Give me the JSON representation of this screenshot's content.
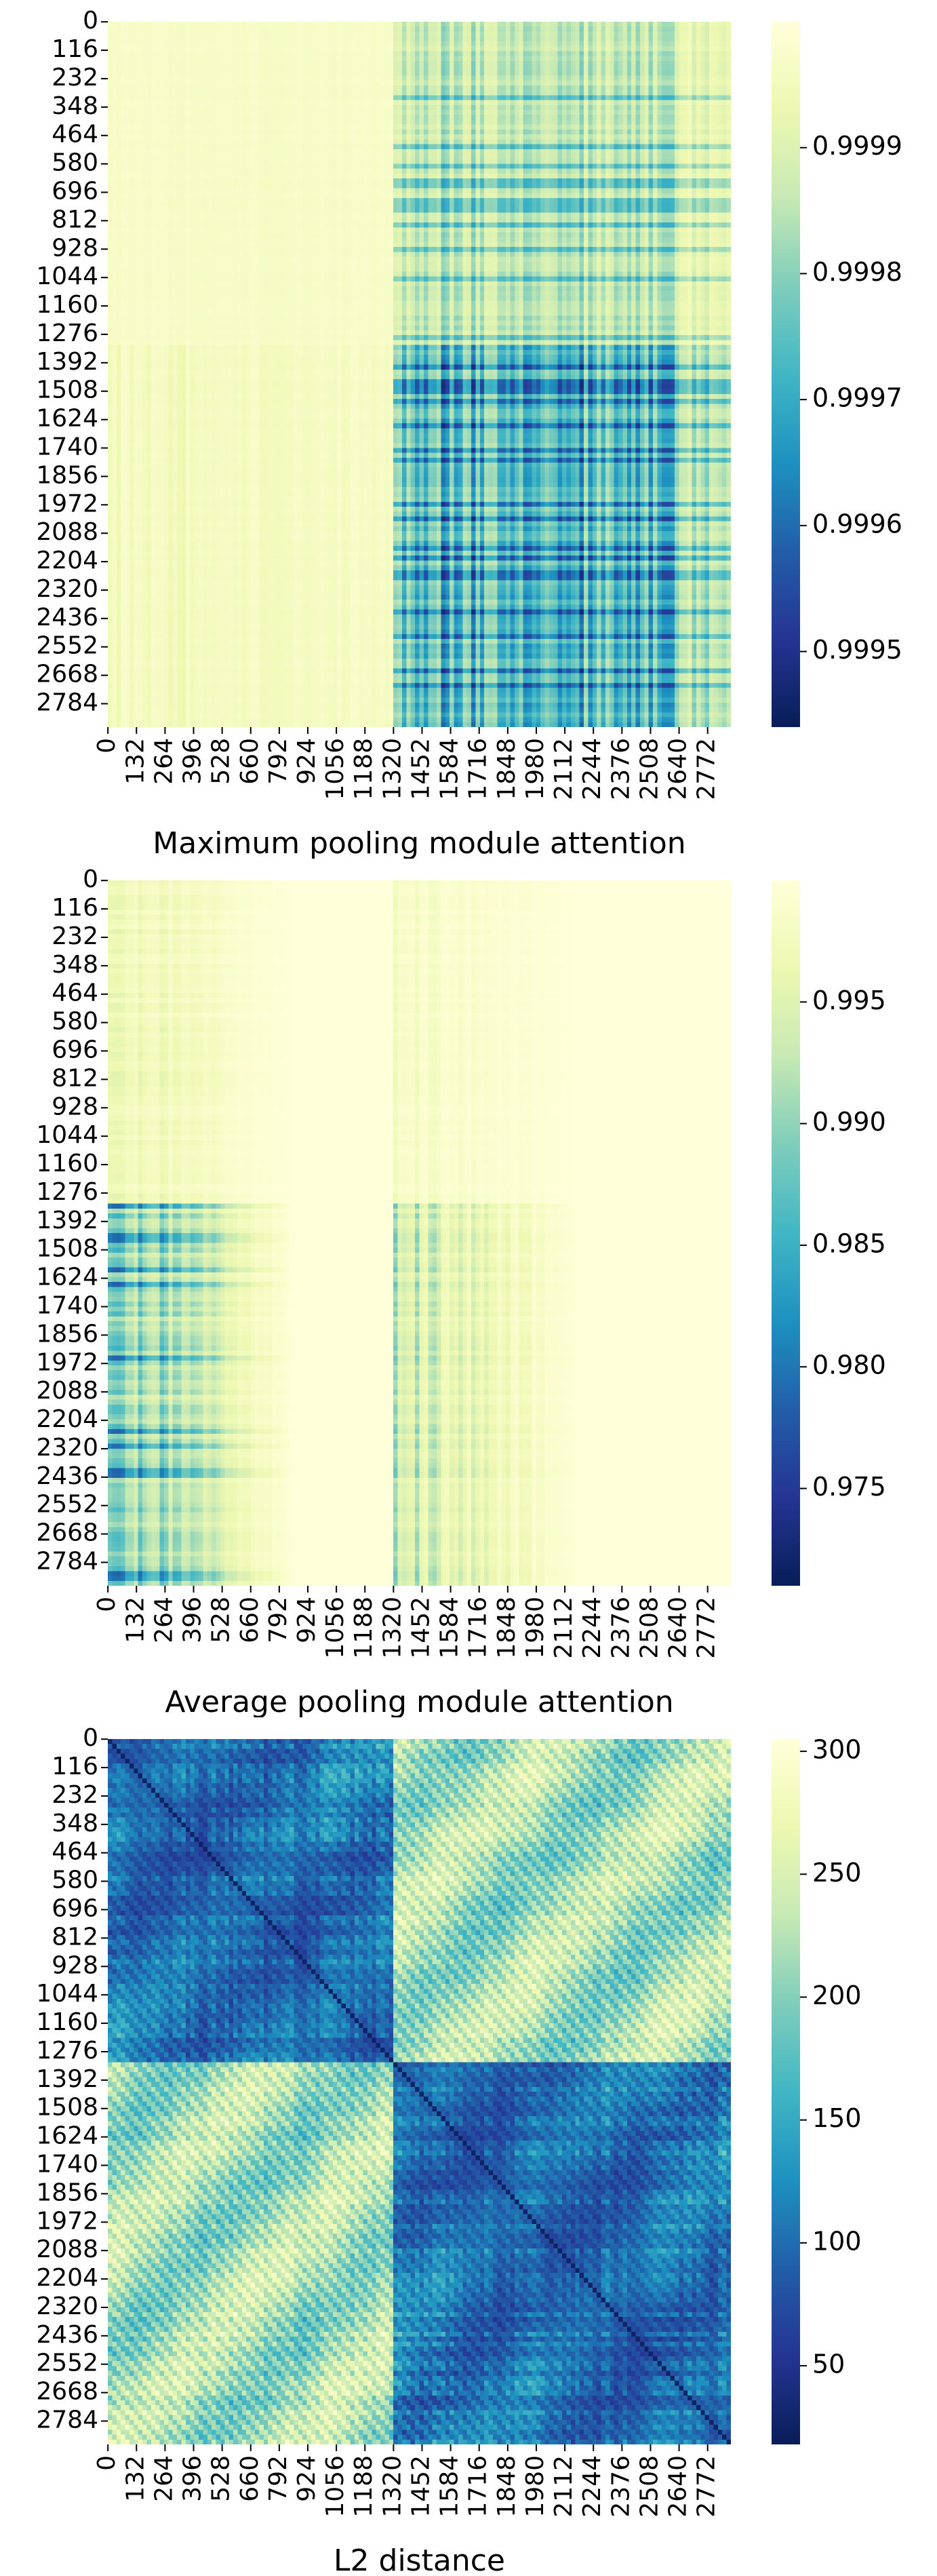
{
  "chart_data": [
    {
      "type": "heatmap",
      "title": "",
      "xlabel": "Maximum pooling module attention",
      "ylabel": "",
      "row_ticks": [
        "0",
        "116",
        "232",
        "348",
        "464",
        "580",
        "696",
        "812",
        "928",
        "1044",
        "1160",
        "1276",
        "1392",
        "1508",
        "1624",
        "1740",
        "1856",
        "1972",
        "2088",
        "2204",
        "2320",
        "2436",
        "2552",
        "2668",
        "2784"
      ],
      "col_ticks": [
        "0",
        "132",
        "264",
        "396",
        "528",
        "660",
        "792",
        "924",
        "1056",
        "1188",
        "1320",
        "1452",
        "1584",
        "1716",
        "1848",
        "1980",
        "2112",
        "2244",
        "2376",
        "2508",
        "2640",
        "2772"
      ],
      "matrix_size": 2880,
      "block_boundary": 1320,
      "colorbar": {
        "cmap": "YlGnBu",
        "reversed_note": "dark = low, light = high",
        "vmin": 0.99944,
        "vmax": 1.0,
        "ticks": [
          0.9995,
          0.9996,
          0.9997,
          0.9998,
          0.9999
        ],
        "tick_labels": [
          "0.9995",
          "0.9996",
          "0.9997",
          "0.9998",
          "0.9999"
        ]
      }
    },
    {
      "type": "heatmap",
      "title": "",
      "xlabel": "Average pooling module attention",
      "ylabel": "",
      "row_ticks": [
        "0",
        "116",
        "232",
        "348",
        "464",
        "580",
        "696",
        "812",
        "928",
        "1044",
        "1160",
        "1276",
        "1392",
        "1508",
        "1624",
        "1740",
        "1856",
        "1972",
        "2088",
        "2204",
        "2320",
        "2436",
        "2552",
        "2668",
        "2784"
      ],
      "col_ticks": [
        "0",
        "132",
        "264",
        "396",
        "528",
        "660",
        "792",
        "924",
        "1056",
        "1188",
        "1320",
        "1452",
        "1584",
        "1716",
        "1848",
        "1980",
        "2112",
        "2244",
        "2376",
        "2508",
        "2640",
        "2772"
      ],
      "matrix_size": 2880,
      "block_boundary": 1320,
      "colorbar": {
        "cmap": "YlGnBu",
        "vmin": 0.971,
        "vmax": 1.0,
        "ticks": [
          0.975,
          0.98,
          0.985,
          0.99,
          0.995
        ],
        "tick_labels": [
          "0.975",
          "0.980",
          "0.985",
          "0.990",
          "0.995"
        ]
      }
    },
    {
      "type": "heatmap",
      "title": "",
      "xlabel": "L2 distance",
      "ylabel": "",
      "row_ticks": [
        "0",
        "116",
        "232",
        "348",
        "464",
        "580",
        "696",
        "812",
        "928",
        "1044",
        "1160",
        "1276",
        "1392",
        "1508",
        "1624",
        "1740",
        "1856",
        "1972",
        "2088",
        "2204",
        "2320",
        "2436",
        "2552",
        "2668",
        "2784"
      ],
      "col_ticks": [
        "0",
        "132",
        "264",
        "396",
        "528",
        "660",
        "792",
        "924",
        "1056",
        "1188",
        "1320",
        "1452",
        "1584",
        "1716",
        "1848",
        "1980",
        "2112",
        "2244",
        "2376",
        "2508",
        "2640",
        "2772"
      ],
      "matrix_size": 2880,
      "block_boundary": 1320,
      "colorbar": {
        "cmap": "YlGnBu",
        "vmin": 18,
        "vmax": 305,
        "ticks": [
          50,
          100,
          150,
          200,
          250,
          300
        ],
        "tick_labels": [
          "50",
          "100",
          "150",
          "200",
          "250",
          "300"
        ]
      }
    }
  ]
}
